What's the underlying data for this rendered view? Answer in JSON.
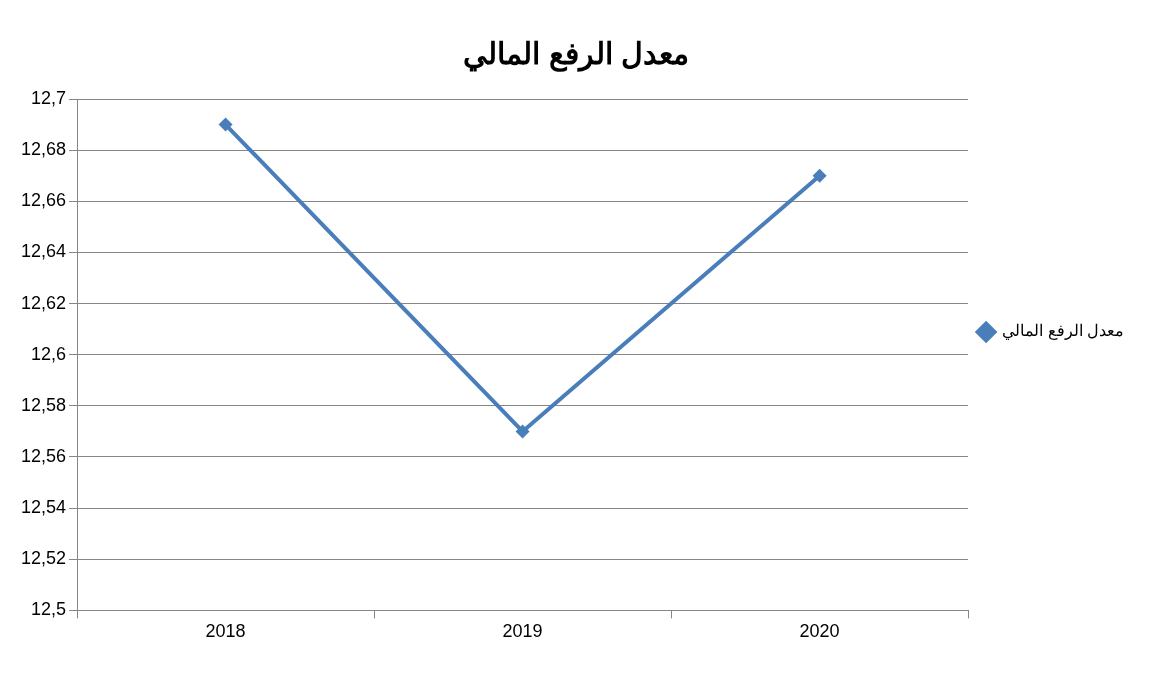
{
  "chart_data": {
    "type": "line",
    "title": "معدل الرفع المالي",
    "categories": [
      "2018",
      "2019",
      "2020"
    ],
    "series": [
      {
        "name": "معدل الرفع المالي",
        "color": "#4a7ebb",
        "values": [
          12.69,
          12.57,
          12.67
        ]
      }
    ],
    "ylim": [
      12.5,
      12.7
    ],
    "yticks": [
      {
        "value": 12.5,
        "label": "12,5"
      },
      {
        "value": 12.52,
        "label": "12,52"
      },
      {
        "value": 12.54,
        "label": "12,54"
      },
      {
        "value": 12.56,
        "label": "12,56"
      },
      {
        "value": 12.58,
        "label": "12,58"
      },
      {
        "value": 12.6,
        "label": "12,6"
      },
      {
        "value": 12.62,
        "label": "12,62"
      },
      {
        "value": 12.64,
        "label": "12,64"
      },
      {
        "value": 12.66,
        "label": "12,66"
      },
      {
        "value": 12.68,
        "label": "12,68"
      },
      {
        "value": 12.7,
        "label": "12,7"
      }
    ],
    "grid": "y",
    "legend": "right",
    "marker": "diamond",
    "line_style": "solid"
  }
}
